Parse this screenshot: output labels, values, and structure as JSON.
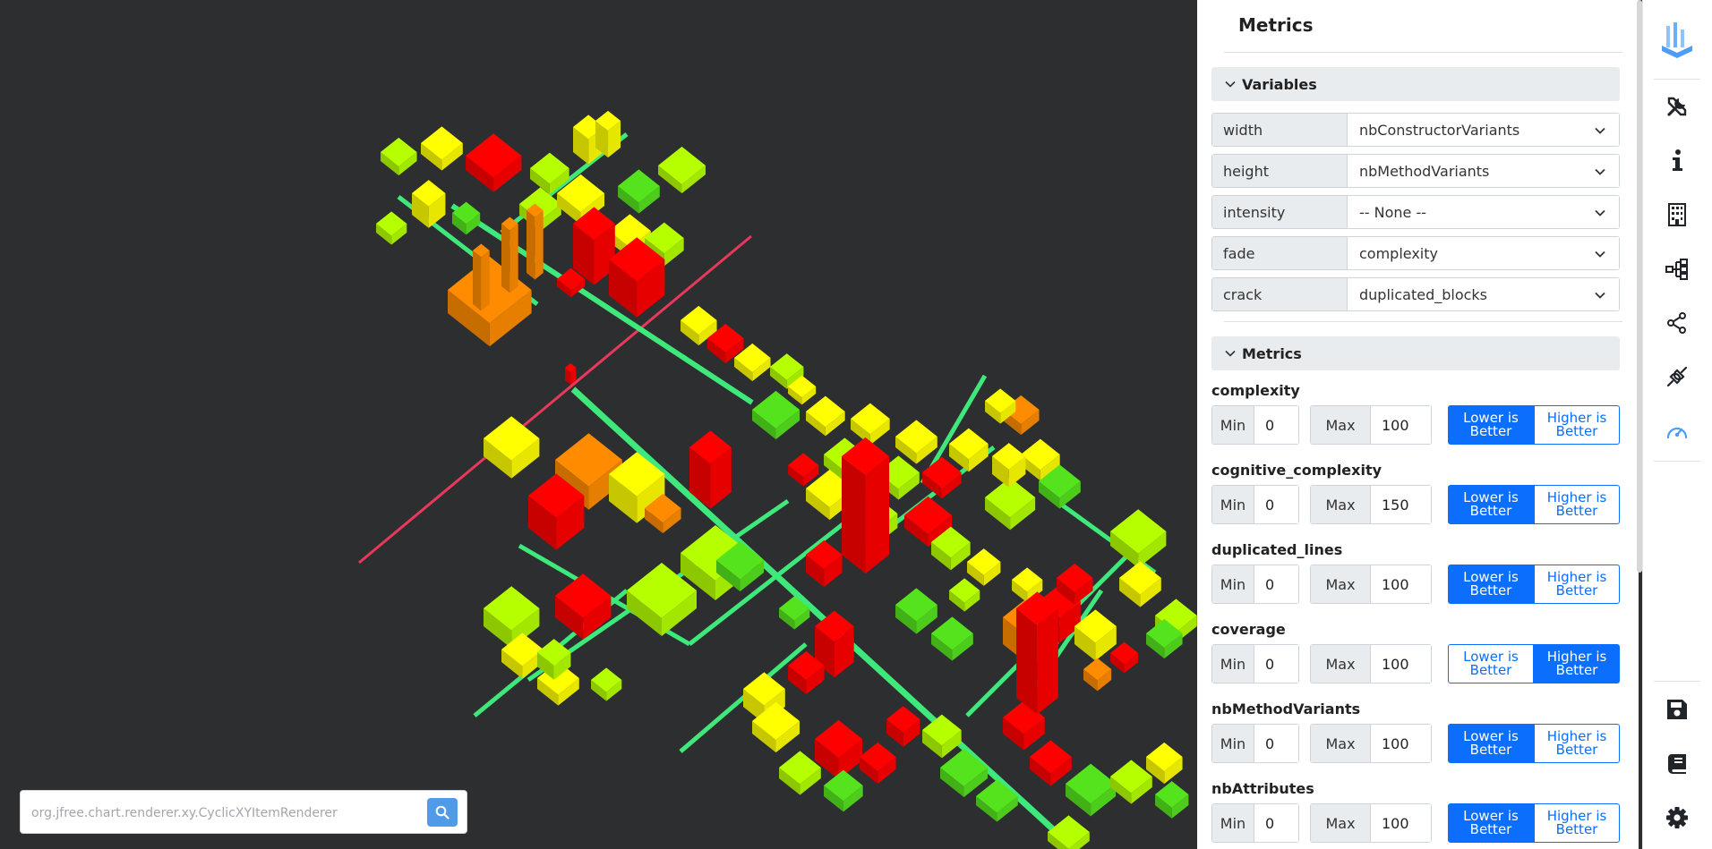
{
  "search": {
    "placeholder": "org.jfree.chart.renderer.xy.CyclicXYItemRenderer"
  },
  "panel": {
    "title": "Metrics",
    "variables_section": "Variables",
    "metrics_section": "Metrics"
  },
  "variables": [
    {
      "label": "width",
      "value": "nbConstructorVariants"
    },
    {
      "label": "height",
      "value": "nbMethodVariants"
    },
    {
      "label": "intensity",
      "value": "-- None --"
    },
    {
      "label": "fade",
      "value": "complexity"
    },
    {
      "label": "crack",
      "value": "duplicated_blocks"
    }
  ],
  "labels": {
    "min": "Min",
    "max": "Max",
    "lower": "Lower is Better",
    "higher": "Higher is Better"
  },
  "metrics": [
    {
      "name": "complexity",
      "min": "0",
      "max": "100",
      "direction": "lower"
    },
    {
      "name": "cognitive_complexity",
      "min": "0",
      "max": "150",
      "direction": "lower"
    },
    {
      "name": "duplicated_lines",
      "min": "0",
      "max": "100",
      "direction": "lower"
    },
    {
      "name": "coverage",
      "min": "0",
      "max": "100",
      "direction": "higher"
    },
    {
      "name": "nbMethodVariants",
      "min": "0",
      "max": "100",
      "direction": "lower"
    },
    {
      "name": "nbAttributes",
      "min": "0",
      "max": "100",
      "direction": "lower"
    }
  ],
  "toolbar": [
    "logo-icon",
    "tools-icon",
    "info-icon",
    "building-icon",
    "hierarchy-icon",
    "share-icon",
    "plugin-icon",
    "gauge-icon",
    "save-icon",
    "book-icon",
    "gear-icon"
  ],
  "colors": {
    "accent": "#0b6efd",
    "canvas_bg": "#2d2e30",
    "road": "#3ee87a",
    "axis": "#e8395a",
    "buildings": [
      "#ff0000",
      "#ff8c00",
      "#ffff00",
      "#b5ff00",
      "#55e31e"
    ]
  }
}
